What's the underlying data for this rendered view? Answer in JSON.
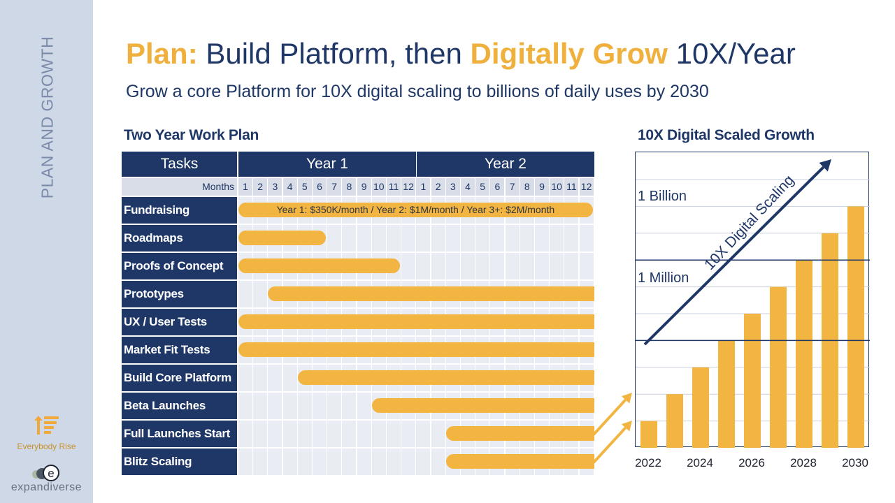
{
  "sidebar": {
    "vertical_title": "PLAN AND GROWTH",
    "logo1_label": "Everybody Rise",
    "logo2_label": "expandiverse",
    "logo2_glyph": "e"
  },
  "header": {
    "title_a": "Plan:",
    "title_b": " Build Platform, then ",
    "title_c": "Digitally Grow",
    "title_d": " 10X/Year",
    "subtitle": "Grow a core Platform for 10X digital scaling to billions of daily uses by 2030"
  },
  "gantt": {
    "section_title": "Two Year Work Plan",
    "tasks_header": "Tasks",
    "year1": "Year 1",
    "year2": "Year 2",
    "months_label": "Months",
    "months": [
      "1",
      "2",
      "3",
      "4",
      "5",
      "6",
      "7",
      "8",
      "9",
      "10",
      "11",
      "12",
      "1",
      "2",
      "3",
      "4",
      "5",
      "6",
      "7",
      "8",
      "9",
      "10",
      "11",
      "12"
    ],
    "tasks": [
      {
        "name": "Fundraising",
        "start": 1,
        "end": 24,
        "rounded": true,
        "text": "Year 1: $350K/month   /   Year 2: $1M/month   /   Year 3+: $2M/month"
      },
      {
        "name": "Roadmaps",
        "start": 1,
        "end": 6,
        "rounded": true
      },
      {
        "name": "Proofs of Concept",
        "start": 1,
        "end": 11,
        "rounded": true
      },
      {
        "name": "Prototypes",
        "start": 3,
        "end": 24,
        "rounded": false
      },
      {
        "name": "UX / User Tests",
        "start": 1,
        "end": 24,
        "rounded": false
      },
      {
        "name": "Market Fit Tests",
        "start": 1,
        "end": 24,
        "rounded": false
      },
      {
        "name": "Build Core Platform",
        "start": 5,
        "end": 24,
        "rounded": false
      },
      {
        "name": "Beta Launches",
        "start": 10,
        "end": 24,
        "rounded": false
      },
      {
        "name": "Full Launches Start",
        "start": 15,
        "end": 24,
        "rounded": false
      },
      {
        "name": "Blitz Scaling",
        "start": 15,
        "end": 24,
        "rounded": false
      }
    ]
  },
  "growth": {
    "section_title": "10X Digital Scaled Growth",
    "label_billion": "1 Billion",
    "label_million": "1 Million",
    "diagonal_label": "10X Digital Scaling",
    "colors": {
      "bar": "#f2b541",
      "navy": "#1f3766"
    },
    "x_ticks": [
      "2022",
      "2024",
      "2026",
      "2028",
      "2030"
    ]
  },
  "chart_data": {
    "type": "bar",
    "title": "10X Digital Scaled Growth",
    "categories": [
      "2022",
      "2023",
      "2024",
      "2025",
      "2026",
      "2027",
      "2028",
      "2029",
      "2030"
    ],
    "values": [
      1000,
      10000,
      100000,
      1000000,
      10000000,
      100000000,
      1000000000,
      10000000000,
      100000000000
    ],
    "y_scale": "log",
    "y_reference_labels": [
      {
        "value": 1000000000,
        "label": "1 Billion"
      },
      {
        "value": 1000000,
        "label": "1 Million"
      }
    ],
    "grid": true
  }
}
